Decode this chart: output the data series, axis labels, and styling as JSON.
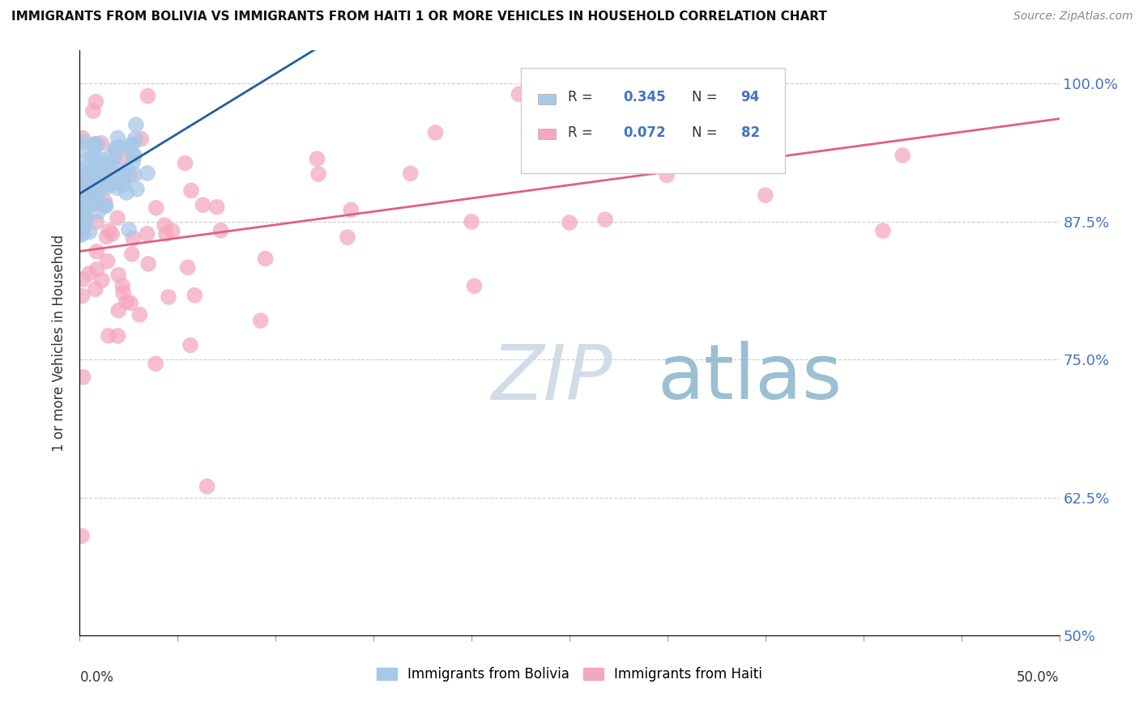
{
  "title": "IMMIGRANTS FROM BOLIVIA VS IMMIGRANTS FROM HAITI 1 OR MORE VEHICLES IN HOUSEHOLD CORRELATION CHART",
  "source": "Source: ZipAtlas.com",
  "ylabel": "1 or more Vehicles in Household",
  "xlim": [
    0.0,
    0.5
  ],
  "ylim": [
    0.5,
    1.03
  ],
  "ytick_values": [
    0.5,
    0.625,
    0.75,
    0.875,
    1.0
  ],
  "ytick_labels": [
    "50%",
    "62.5%",
    "75.0%",
    "87.5%",
    "100.0%"
  ],
  "bolivia_R": 0.345,
  "bolivia_N": 94,
  "haiti_R": 0.072,
  "haiti_N": 82,
  "bolivia_color": "#a8c8e8",
  "haiti_color": "#f4a8c0",
  "bolivia_line_color": "#2060a0",
  "haiti_line_color": "#e06080",
  "background_color": "#ffffff",
  "watermark_zip_color": "#c8dce8",
  "watermark_atlas_color": "#a0b8d0",
  "legend_label_color": "#4472c4",
  "right_tick_color": "#4472c4"
}
